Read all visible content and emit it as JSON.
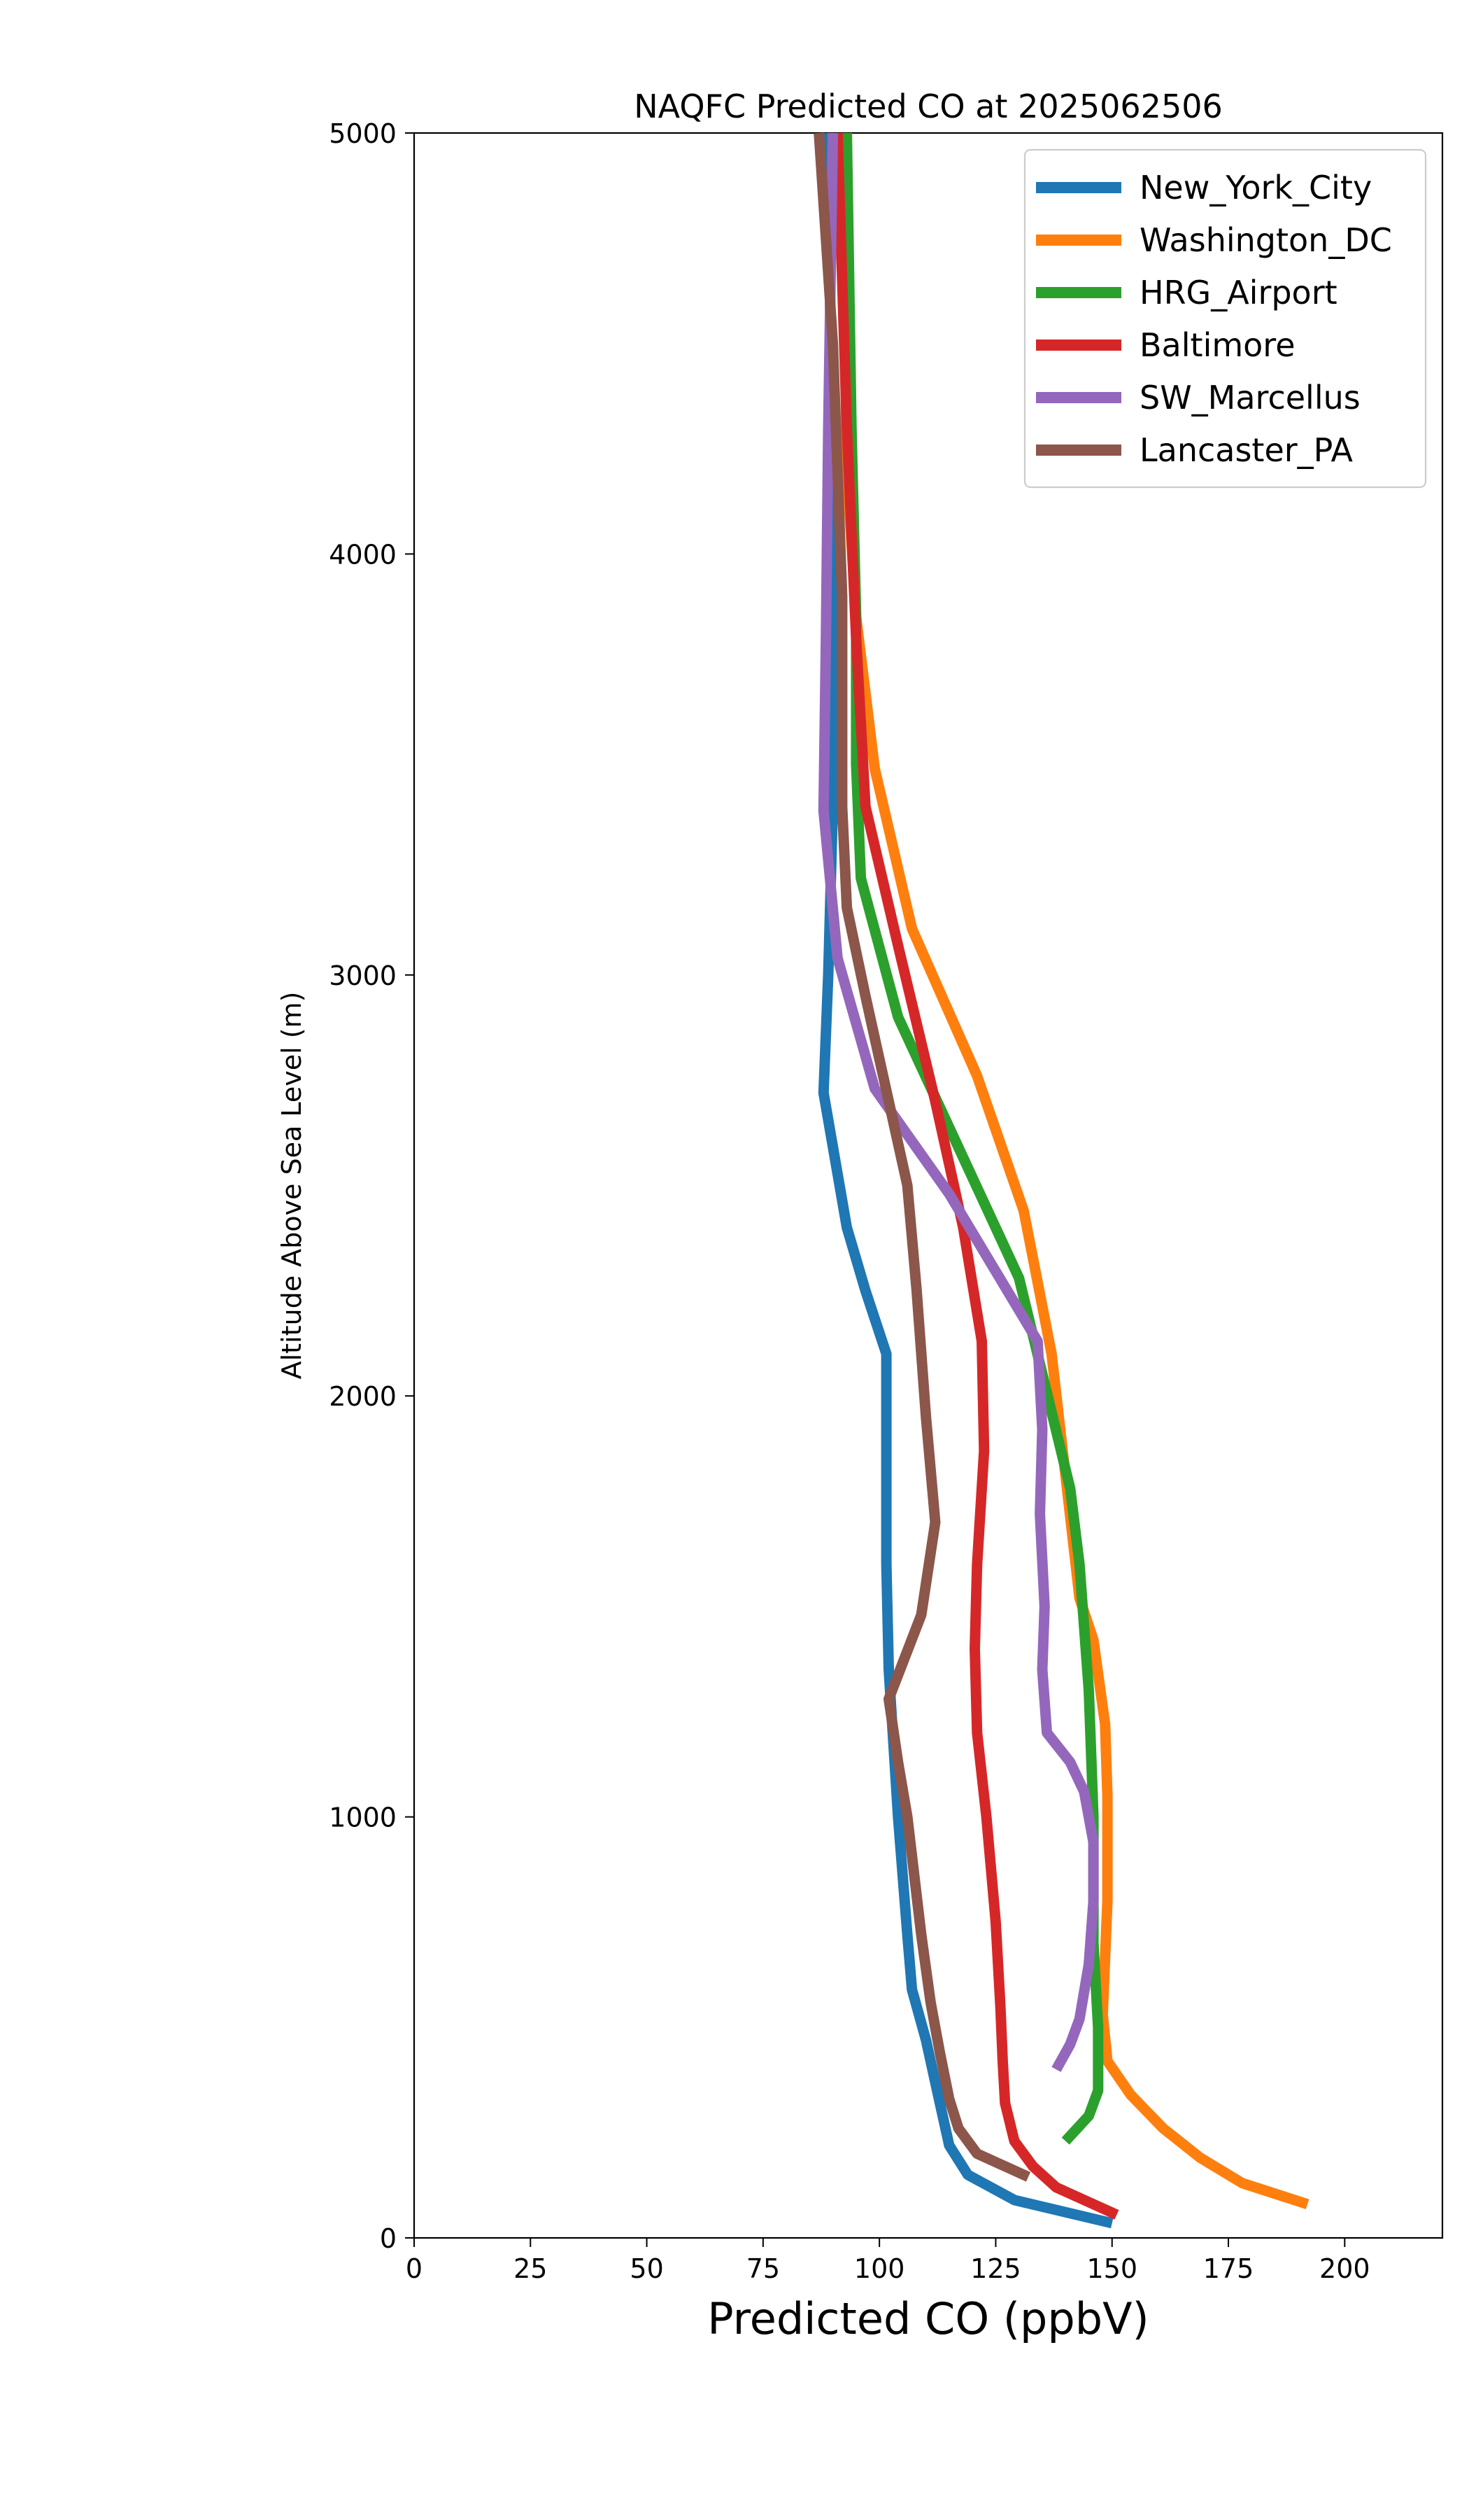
{
  "chart_data": {
    "type": "line",
    "title": "NAQFC Predicted CO at 2025062506",
    "xlabel": "Predicted CO (ppbV)",
    "ylabel": "Altitude Above Sea Level (m)",
    "xlim": [
      0,
      221
    ],
    "ylim": [
      0,
      5000
    ],
    "xticks": [
      0,
      25,
      50,
      75,
      100,
      125,
      150,
      175,
      200
    ],
    "yticks": [
      0,
      1000,
      2000,
      3000,
      4000,
      5000
    ],
    "grid": false,
    "legend_position": "top-right",
    "series": [
      {
        "name": "New_York_City",
        "color": "#1f77b4",
        "points": [
          [
            150,
            35
          ],
          [
            129,
            90
          ],
          [
            119,
            150
          ],
          [
            115,
            220
          ],
          [
            113,
            320
          ],
          [
            110,
            470
          ],
          [
            107,
            590
          ],
          [
            106,
            720
          ],
          [
            104,
            1000
          ],
          [
            102,
            1350
          ],
          [
            101.5,
            1600
          ],
          [
            101.5,
            2100
          ],
          [
            97,
            2250
          ],
          [
            93,
            2400
          ],
          [
            88,
            2720
          ],
          [
            89,
            3000
          ],
          [
            90,
            3400
          ],
          [
            90,
            4000
          ],
          [
            89,
            5000
          ]
        ]
      },
      {
        "name": "Washington_DC",
        "color": "#ff7f0e",
        "points": [
          [
            192,
            80
          ],
          [
            178,
            130
          ],
          [
            169,
            190
          ],
          [
            161,
            260
          ],
          [
            154,
            340
          ],
          [
            149,
            420
          ],
          [
            148,
            530
          ],
          [
            149,
            800
          ],
          [
            149,
            1050
          ],
          [
            148.5,
            1220
          ],
          [
            146,
            1420
          ],
          [
            143,
            1520
          ],
          [
            137,
            2100
          ],
          [
            131,
            2440
          ],
          [
            121,
            2760
          ],
          [
            107,
            3110
          ],
          [
            99,
            3490
          ],
          [
            95,
            3850
          ],
          [
            93,
            4200
          ],
          [
            92,
            5000
          ]
        ]
      },
      {
        "name": "HRG_Airport",
        "color": "#2ca02c",
        "points": [
          [
            140,
            230
          ],
          [
            145,
            290
          ],
          [
            147,
            350
          ],
          [
            147,
            500
          ],
          [
            146,
            700
          ],
          [
            146,
            1000
          ],
          [
            145,
            1300
          ],
          [
            143,
            1600
          ],
          [
            141,
            1780
          ],
          [
            130,
            2280
          ],
          [
            104,
            2900
          ],
          [
            96,
            3230
          ],
          [
            95,
            3500
          ],
          [
            95,
            3850
          ],
          [
            94,
            4300
          ],
          [
            93,
            5000
          ]
        ]
      },
      {
        "name": "Baltimore",
        "color": "#d62728",
        "points": [
          [
            151,
            55
          ],
          [
            138,
            120
          ],
          [
            133,
            170
          ],
          [
            129,
            230
          ],
          [
            127,
            320
          ],
          [
            126.5,
            420
          ],
          [
            126,
            550
          ],
          [
            125,
            750
          ],
          [
            123,
            1000
          ],
          [
            121,
            1200
          ],
          [
            120.5,
            1400
          ],
          [
            121,
            1600
          ],
          [
            122.5,
            1870
          ],
          [
            122,
            2130
          ],
          [
            118,
            2400
          ],
          [
            112,
            2700
          ],
          [
            104,
            3070
          ],
          [
            97,
            3400
          ],
          [
            95,
            3800
          ],
          [
            93,
            4300
          ],
          [
            91,
            5000
          ]
        ]
      },
      {
        "name": "SW_Marcellus",
        "color": "#9467bd",
        "points": [
          [
            138,
            400
          ],
          [
            141,
            460
          ],
          [
            143,
            520
          ],
          [
            145,
            650
          ],
          [
            146,
            800
          ],
          [
            146,
            940
          ],
          [
            144,
            1060
          ],
          [
            141,
            1130
          ],
          [
            136,
            1200
          ],
          [
            135,
            1350
          ],
          [
            135.5,
            1500
          ],
          [
            134.5,
            1720
          ],
          [
            135,
            1920
          ],
          [
            134,
            2130
          ],
          [
            115,
            2480
          ],
          [
            99,
            2730
          ],
          [
            91,
            3040
          ],
          [
            88,
            3390
          ],
          [
            88.5,
            3800
          ],
          [
            89,
            4300
          ],
          [
            90,
            5000
          ]
        ]
      },
      {
        "name": "Lancaster_PA",
        "color": "#8c564b",
        "points": [
          [
            132,
            145
          ],
          [
            121,
            200
          ],
          [
            117,
            260
          ],
          [
            115,
            330
          ],
          [
            113,
            440
          ],
          [
            111,
            560
          ],
          [
            109,
            720
          ],
          [
            106,
            1000
          ],
          [
            104,
            1130
          ],
          [
            102,
            1280
          ],
          [
            109,
            1480
          ],
          [
            112,
            1700
          ],
          [
            110,
            1950
          ],
          [
            108,
            2250
          ],
          [
            106,
            2500
          ],
          [
            97,
            2950
          ],
          [
            93,
            3160
          ],
          [
            92,
            3400
          ],
          [
            92,
            3900
          ],
          [
            90,
            4500
          ],
          [
            87,
            5000
          ]
        ]
      }
    ]
  }
}
